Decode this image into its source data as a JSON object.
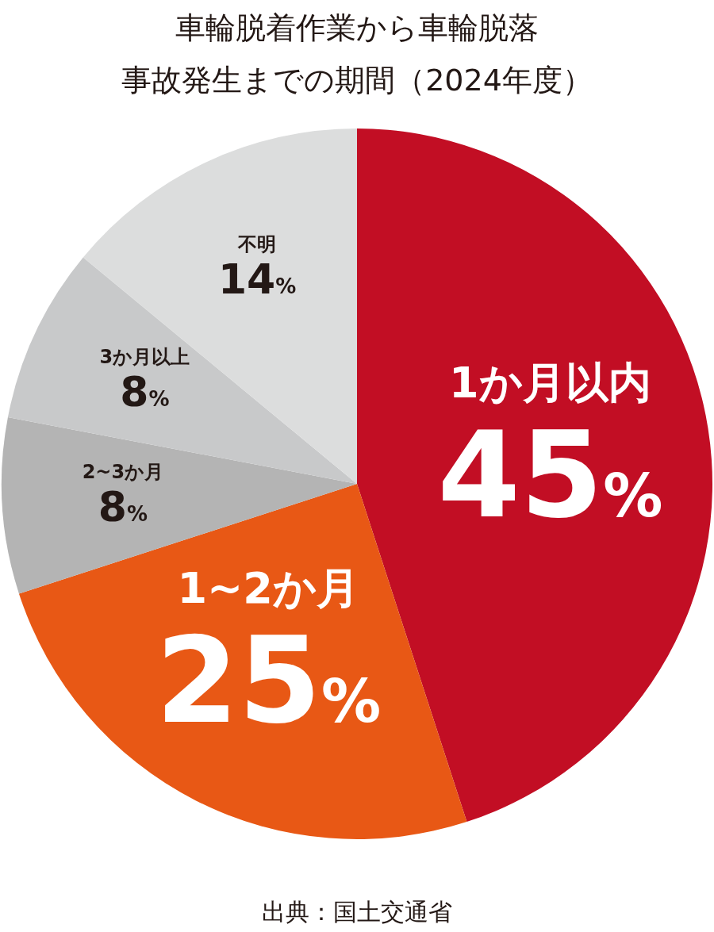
{
  "chart_data": {
    "type": "pie",
    "title": "車輪脱着作業から車輪脱落事故発生までの期間（2024年度）",
    "categories": [
      "1か月以内",
      "1~2か月",
      "2~3か月",
      "3か月以上",
      "不明"
    ],
    "values": [
      45,
      25,
      8,
      8,
      14
    ],
    "value_labels": [
      "45%",
      "25%",
      "8%",
      "8%",
      "14%"
    ],
    "colors": [
      "#c20e24",
      "#e85815",
      "#b4b4b4",
      "#c8c9ca",
      "#dcdddd"
    ],
    "annotations": [
      "出典：国土交通省"
    ]
  }
}
